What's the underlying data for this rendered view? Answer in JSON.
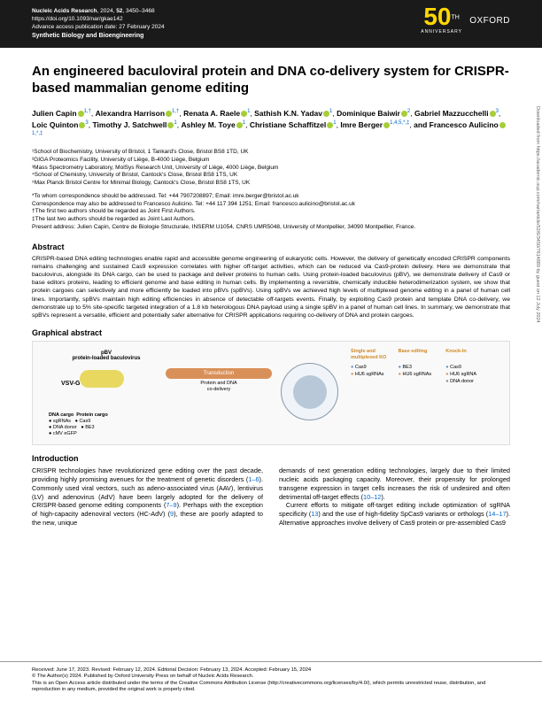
{
  "header": {
    "journal": "Nucleic Acids Research",
    "year": "2024",
    "volume": "52",
    "pages": "3450–3468",
    "doi": "https://doi.org/10.1093/nar/gkae142",
    "advance": "Advance access publication date: 27 February 2024",
    "section": "Synthetic Biology and Bioengineering",
    "anniversary_num": "50",
    "anniversary_th": "TH",
    "anniversary_text": "ANNIVERSARY",
    "publisher": "OXFORD"
  },
  "title": "An engineered baculoviral protein and DNA co-delivery system for CRISPR-based mammalian genome editing",
  "authors_html": "Julien Capin|1,†| Alexandra Harrison|1,†| Renata A. Raele|1| Sathish K.N. Yadav|1| Dominique Baiwir|2| Gabriel Mazzucchelli|3| Loic Quinton|3| Timothy J. Satchwell|1| Ashley M. Toye|1| Christiane Schaffitzel|1| Imre Berger|1,4,5,*,‡| and Francesco Aulicino|1,*,‡",
  "affiliations": [
    "¹School of Biochemistry, University of Bristol, 1 Tankard's Close, Bristol BS8 1TD, UK",
    "²GIGA Proteomics Facility, University of Liège, B-4000 Liège, Belgium",
    "³Mass Spectrometry Laboratory, MolSys Research Unit, University of Liège, 4000 Liège, Belgium",
    "⁴School of Chemistry, University of Bristol, Cantock's Close, Bristol BS8 1TS, UK",
    "⁵Max Planck Bristol Centre for Minimal Biology, Cantock's Close, Bristol BS8 1TS, UK"
  ],
  "notes": [
    "*To whom correspondence should be addressed. Tel: +44 7907208897; Email: imre.berger@bristol.ac.uk",
    "Correspondence may also be addressed to Francesco Aulicino. Tel: +44 117 394 1251; Email: francesco.aulicino@bristol.ac.uk",
    "†The first two authors should be regarded as Joint First Authors.",
    "‡The last two authors should be regarded as Joint Last Authors.",
    "Present address: Julien Capin, Centre de Biologie Structurale, INSERM U1054, CNRS UMR5048, University of Montpellier, 34090 Montpellier, France."
  ],
  "abstract_head": "Abstract",
  "abstract": "CRISPR-based DNA editing technologies enable rapid and accessible genome engineering of eukaryotic cells. However, the delivery of genetically encoded CRISPR components remains challenging and sustained Cas9 expression correlates with higher off-target activities, which can be reduced via Cas9-protein delivery. Here we demonstrate that baculovirus, alongside its DNA cargo, can be used to package and deliver proteins to human cells. Using protein-loaded baculovirus (pBV), we demonstrate delivery of Cas9 or base editors proteins, leading to efficient genome and base editing in human cells. By implementing a reversible, chemically inducible heterodimerization system, we show that protein cargoes can selectively and more efficiently be loaded into pBVs (spBVs). Using spBVs we achieved high levels of multiplexed genome editing in a panel of human cell lines. Importantly, spBVs maintain high editing efficiencies in absence of detectable off-targets events. Finally, by exploiting Cas9 protein and template DNA co-delivery, we demonstrate up to 5% site-specific targeted integration of a 1.8 kb heterologous DNA payload using a single spBV in a panel of human cell lines. In summary, we demonstrate that spBVs represent a versatile, efficient and potentially safer alternative for CRISPR applications requiring co-delivery of DNA and protein cargoes.",
  "graphical_head": "Graphical abstract",
  "ga": {
    "pbv_label": "pBV\nprotein-loaded baculovirus",
    "vsvg": "VSV-G",
    "transduction": "Transduction",
    "subtext": "Protein and DNA\nco-delivery",
    "cargo_head": "DNA cargo",
    "cargo_items": [
      "sgRNAs",
      "DNA donor",
      "cMV eGFP"
    ],
    "protein_head": "Protein cargo",
    "protein_items": [
      "Cas9",
      "BE3"
    ],
    "col1_head": "Single and\nmultiplexed KO",
    "col1_items": [
      "Cas9",
      "HU6 sgRNAs"
    ],
    "col2_head": "Base editing",
    "col2_items": [
      "BE3",
      "HU6 sgRNAs"
    ],
    "col3_head": "Knock-In",
    "col3_items": [
      "Cas9",
      "HU6 sgRNA",
      "DNA donor"
    ]
  },
  "intro_head": "Introduction",
  "intro_left": "CRISPR technologies have revolutionized gene editing over the past decade, providing highly promising avenues for the treatment of genetic disorders (1–6). Commonly used viral vectors, such as adeno-associated virus (AAV), lentivirus (LV) and adenovirus (AdV) have been largely adopted for the delivery of CRISPR-based genome editing components (7–9). Perhaps with the exception of high-capacity adenoviral vectors (HC-AdV) (9), these are poorly adapted to the new, unique",
  "intro_right": "demands of next generation editing technologies, largely due to their limited nucleic acids packaging capacity. Moreover, their propensity for prolonged transgene expression in target cells increases the risk of undesired and often detrimental off-target effects (10–12).\n  Current efforts to mitigate off-target editing include optimization of sgRNA specificity (13) and the use of high-fidelity SpCas9 variants or orthologs (14–17). Alternative approaches involve delivery of Cas9 protein or pre-assembled Cas9",
  "footer": {
    "received": "Received: June 17, 2023. Revised: February 12, 2024. Editorial Decision: February 13, 2024. Accepted: February 15, 2024",
    "copyright": "© The Author(s) 2024. Published by Oxford University Press on behalf of Nucleic Acids Research.",
    "license": "This is an Open Access article distributed under the terms of the Creative Commons Attribution License (http://creativecommons.org/licenses/by/4.0/), which permits unrestricted reuse, distribution, and reproduction in any medium, provided the original work is properly cited."
  },
  "sidebar": "Downloaded from https://academic.oup.com/nar/article/52/6/3450/7614889 by guest on 12 July 2024"
}
